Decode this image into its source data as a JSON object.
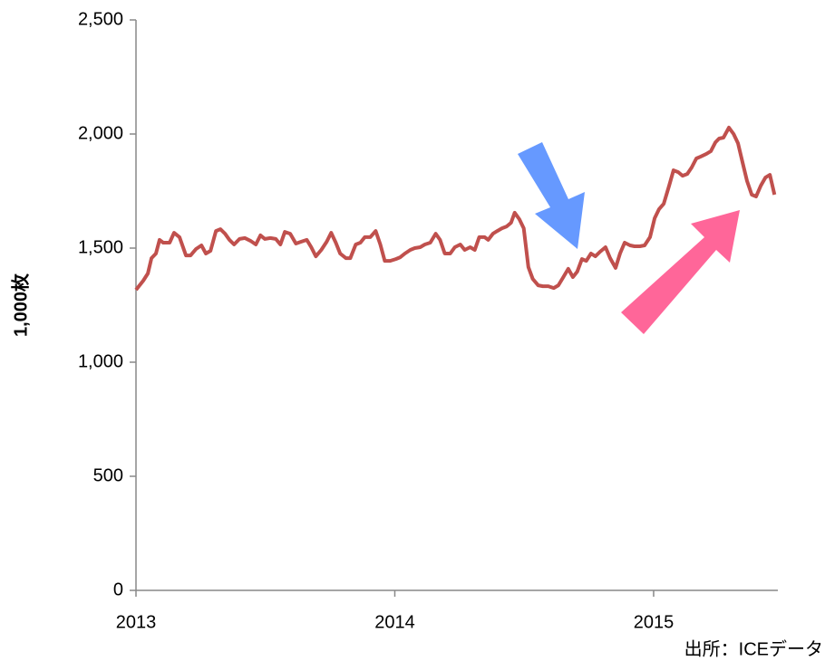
{
  "chart_data": {
    "type": "line",
    "y_label": "1,000枚",
    "source": "出所：ICEデータ",
    "xlim": [
      2013,
      2015.48
    ],
    "xticks": [
      2013,
      2014,
      2015
    ],
    "ylim": [
      0,
      2500
    ],
    "yticks": [
      0,
      500,
      {
        "value": 1000,
        "label": "1,000"
      },
      {
        "value": 1500,
        "label": "1,500"
      },
      {
        "value": 2000,
        "label": "2,000"
      },
      {
        "value": 2500,
        "label": "2,500"
      }
    ],
    "grid": false,
    "x": [
      2013.0,
      2013.028,
      2013.046,
      2013.06,
      2013.077,
      2013.091,
      2013.105,
      2013.13,
      2013.147,
      2013.168,
      2013.193,
      2013.211,
      2013.232,
      2013.253,
      2013.27,
      2013.288,
      2013.309,
      2013.326,
      2013.344,
      2013.361,
      2013.379,
      2013.4,
      2013.421,
      2013.442,
      2013.463,
      2013.481,
      2013.498,
      2013.519,
      2013.54,
      2013.558,
      2013.575,
      2013.596,
      2013.618,
      2013.639,
      2013.66,
      2013.677,
      2013.695,
      2013.716,
      2013.737,
      2013.754,
      2013.772,
      2013.789,
      2013.811,
      2013.828,
      2013.849,
      2013.867,
      2013.884,
      2013.905,
      2013.926,
      2013.944,
      2013.961,
      2013.982,
      2014.004,
      2014.021,
      2014.039,
      2014.06,
      2014.077,
      2014.098,
      2014.116,
      2014.137,
      2014.158,
      2014.175,
      2014.193,
      2014.214,
      2014.232,
      2014.253,
      2014.27,
      2014.291,
      2014.309,
      2014.326,
      2014.347,
      2014.361,
      2014.379,
      2014.396,
      2014.414,
      2014.432,
      2014.449,
      2014.463,
      2014.481,
      2014.498,
      2014.516,
      2014.533,
      2014.554,
      2014.572,
      2014.593,
      2014.614,
      2014.632,
      2014.649,
      2014.67,
      2014.688,
      2014.705,
      2014.723,
      2014.74,
      2014.758,
      2014.775,
      2014.793,
      2014.814,
      2014.832,
      2014.853,
      2014.87,
      2014.888,
      2014.909,
      2014.926,
      2014.947,
      2014.965,
      2014.986,
      2015.004,
      2015.021,
      2015.039,
      2015.06,
      2015.077,
      2015.095,
      2015.112,
      2015.13,
      2015.147,
      2015.165,
      2015.182,
      2015.204,
      2015.221,
      2015.239,
      2015.253,
      2015.27,
      2015.291,
      2015.309,
      2015.326,
      2015.344,
      2015.361,
      2015.379,
      2015.396,
      2015.414,
      2015.432,
      2015.449,
      2015.467
    ],
    "series": [
      {
        "color": "#c0504d",
        "values": [
          1317,
          1357,
          1389,
          1456,
          1476,
          1536,
          1524,
          1524,
          1567,
          1548,
          1468,
          1468,
          1496,
          1512,
          1476,
          1488,
          1575,
          1583,
          1563,
          1536,
          1516,
          1540,
          1544,
          1532,
          1516,
          1556,
          1540,
          1544,
          1540,
          1516,
          1571,
          1563,
          1520,
          1528,
          1536,
          1504,
          1464,
          1492,
          1528,
          1567,
          1524,
          1476,
          1456,
          1456,
          1516,
          1524,
          1548,
          1548,
          1575,
          1516,
          1444,
          1444,
          1452,
          1460,
          1476,
          1492,
          1500,
          1504,
          1516,
          1524,
          1563,
          1536,
          1476,
          1476,
          1504,
          1516,
          1492,
          1504,
          1492,
          1548,
          1548,
          1536,
          1563,
          1575,
          1587,
          1595,
          1611,
          1655,
          1627,
          1587,
          1417,
          1365,
          1337,
          1333,
          1333,
          1325,
          1337,
          1369,
          1409,
          1373,
          1397,
          1452,
          1444,
          1476,
          1464,
          1484,
          1504,
          1456,
          1413,
          1476,
          1524,
          1512,
          1508,
          1508,
          1512,
          1548,
          1631,
          1671,
          1694,
          1774,
          1841,
          1833,
          1817,
          1825,
          1853,
          1893,
          1901,
          1913,
          1925,
          1964,
          1980,
          1984,
          2028,
          2000,
          1960,
          1873,
          1794,
          1734,
          1726,
          1774,
          1809,
          1821,
          1734
        ]
      }
    ]
  }
}
